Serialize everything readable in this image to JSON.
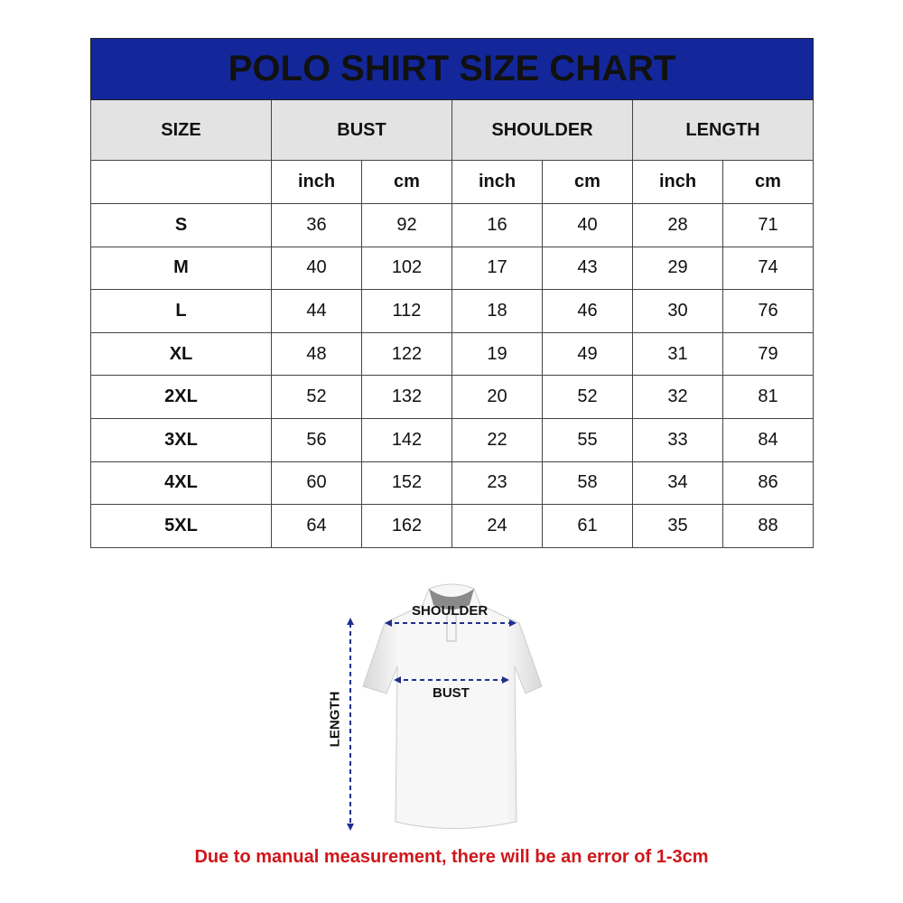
{
  "title": "POLO SHIRT SIZE CHART",
  "headers": {
    "size": "SIZE",
    "bust": "BUST",
    "shoulder": "SHOULDER",
    "length": "LENGTH"
  },
  "units": [
    "inch",
    "cm",
    "inch",
    "cm",
    "inch",
    "cm"
  ],
  "rows": [
    {
      "size": "S",
      "values": [
        "36",
        "92",
        "16",
        "40",
        "28",
        "71"
      ]
    },
    {
      "size": "M",
      "values": [
        "40",
        "102",
        "17",
        "43",
        "29",
        "74"
      ]
    },
    {
      "size": "L",
      "values": [
        "44",
        "112",
        "18",
        "46",
        "30",
        "76"
      ]
    },
    {
      "size": "XL",
      "values": [
        "48",
        "122",
        "19",
        "49",
        "31",
        "79"
      ]
    },
    {
      "size": "2XL",
      "values": [
        "52",
        "132",
        "20",
        "52",
        "32",
        "81"
      ]
    },
    {
      "size": "3XL",
      "values": [
        "56",
        "142",
        "22",
        "55",
        "33",
        "84"
      ]
    },
    {
      "size": "4XL",
      "values": [
        "60",
        "152",
        "23",
        "58",
        "34",
        "86"
      ]
    },
    {
      "size": "5XL",
      "values": [
        "64",
        "162",
        "24",
        "61",
        "35",
        "88"
      ]
    }
  ],
  "diagram": {
    "shoulder": "SHOULDER",
    "bust": "BUST",
    "length": "LENGTH"
  },
  "note": "Due to manual measurement, there will be an error of 1-3cm",
  "colors": {
    "title_bg": "#13279b",
    "header_bg": "#e3e3e3",
    "note": "#d0161a",
    "arrow": "#1f2f8f"
  }
}
